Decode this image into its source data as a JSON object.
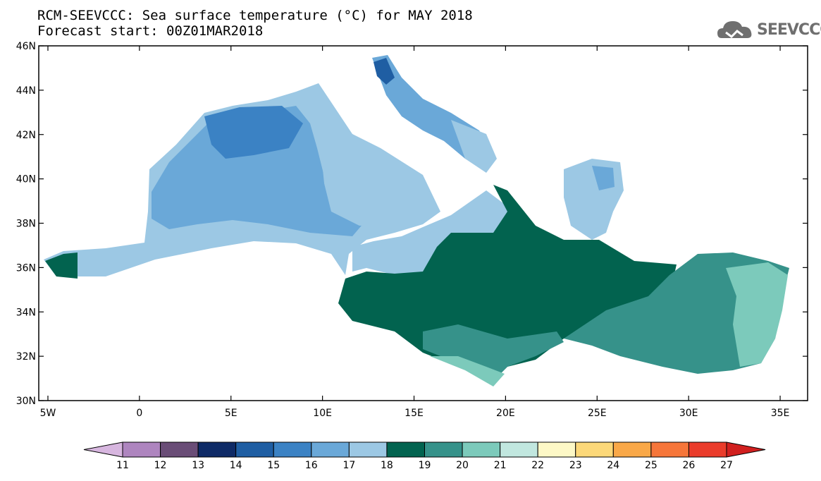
{
  "title_line1": "RCM-SEEVCCC: Sea surface temperature (°C) for MAY 2018",
  "title_line2": "Forecast start: 00Z01MAR2018",
  "logo": {
    "icon": "cloud-icon",
    "text": "SEEVCCC"
  },
  "map": {
    "lon_range": [
      -5.5,
      36.5
    ],
    "lat_range": [
      30,
      46
    ],
    "lon_ticks": [
      -5,
      0,
      5,
      10,
      15,
      20,
      25,
      30,
      35
    ],
    "lon_tick_labels": [
      "5W",
      "0",
      "5E",
      "10E",
      "15E",
      "20E",
      "25E",
      "30E",
      "35E"
    ],
    "lat_ticks": [
      46,
      44,
      42,
      40,
      38,
      36,
      34,
      32,
      30
    ],
    "lat_tick_labels": [
      "46N",
      "44N",
      "42N",
      "40N",
      "38N",
      "36N",
      "34N",
      "32N",
      "30N"
    ]
  },
  "colorbar": {
    "levels": [
      11,
      12,
      13,
      14,
      15,
      16,
      17,
      18,
      19,
      20,
      21,
      22,
      23,
      24,
      25,
      26,
      27
    ],
    "colors": [
      "#d7b6df",
      "#ae85bf",
      "#6a4d77",
      "#0e2a66",
      "#1f5ea3",
      "#3b82c4",
      "#6aa8d8",
      "#9cc8e4",
      "#02634f",
      "#36928a",
      "#7ccabb",
      "#c1e7df",
      "#fdf8c6",
      "#fcd879",
      "#f9a848",
      "#f6763a",
      "#ea3c2b",
      "#d1201f"
    ]
  }
}
